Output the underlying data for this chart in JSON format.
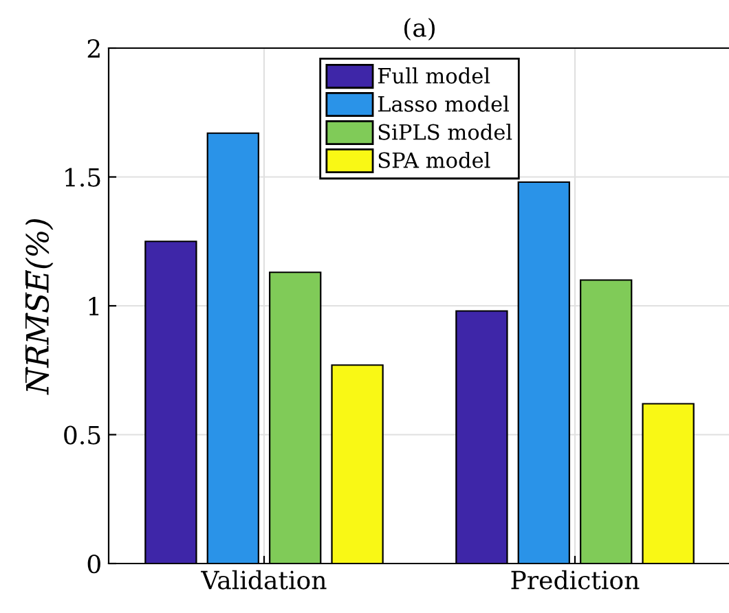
{
  "chart_data": {
    "type": "bar",
    "title": "(a)",
    "ylabel": "N̅R̅M̅S̅E̅(%)",
    "categories": [
      "Validation",
      "Prediction"
    ],
    "series": [
      {
        "name": "Full model",
        "color": "#3e26a8",
        "values": [
          1.25,
          0.98
        ]
      },
      {
        "name": "Lasso model",
        "color": "#2a93e8",
        "values": [
          1.67,
          1.48
        ]
      },
      {
        "name": "SiPLS model",
        "color": "#80cb58",
        "values": [
          1.13,
          1.1
        ]
      },
      {
        "name": "SPA model",
        "color": "#f9f815",
        "values": [
          0.77,
          0.62
        ]
      }
    ],
    "ylim": [
      0,
      2
    ],
    "yticks": [
      0,
      0.5,
      1,
      1.5,
      2
    ],
    "grid": true,
    "legend": "top"
  }
}
